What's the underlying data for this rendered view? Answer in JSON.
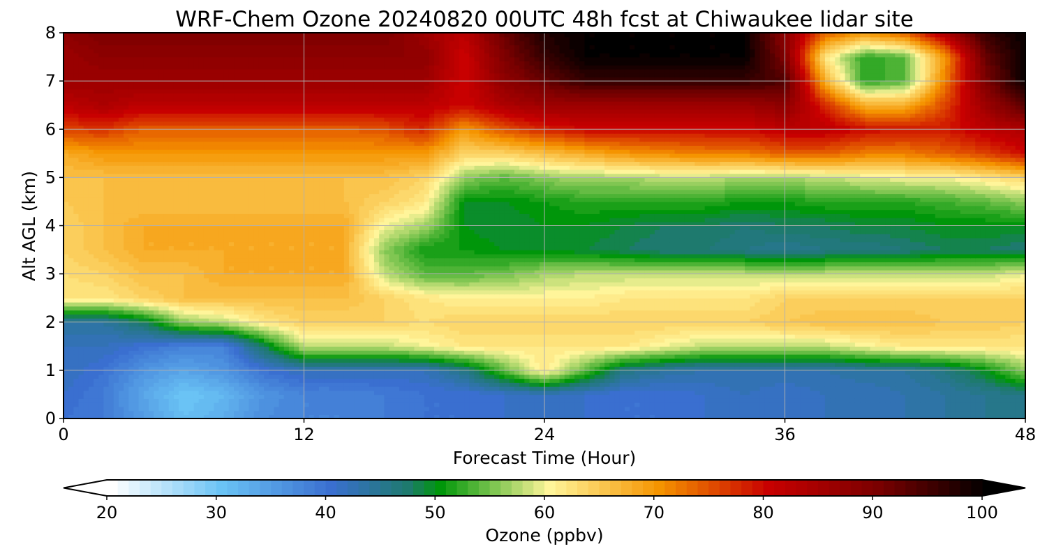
{
  "chart_data": {
    "type": "heatmap",
    "title": "WRF-Chem Ozone  20240820 00UTC 48h fcst at Chiwaukee lidar site",
    "xlabel": "Forecast Time (Hour)",
    "ylabel": "Alt AGL (km)",
    "xlim": [
      0,
      48
    ],
    "ylim": [
      0,
      8
    ],
    "xticks": [
      0,
      12,
      24,
      36,
      48
    ],
    "yticks": [
      0,
      1,
      2,
      3,
      4,
      5,
      6,
      7,
      8
    ],
    "grid": true,
    "x": [
      0,
      2,
      4,
      6,
      8,
      10,
      12,
      14,
      16,
      18,
      20,
      22,
      24,
      26,
      28,
      30,
      32,
      34,
      36,
      38,
      40,
      42,
      44,
      46,
      48
    ],
    "y": [
      0,
      0.5,
      1,
      1.5,
      2,
      2.5,
      3,
      3.5,
      4,
      4.5,
      5,
      5.5,
      6,
      6.5,
      7,
      7.5,
      8
    ],
    "z": [
      [
        40,
        39,
        35,
        31,
        33,
        37,
        38,
        38,
        39,
        40,
        40,
        41,
        41,
        41,
        40,
        40,
        41,
        42,
        41,
        42,
        42,
        43,
        44,
        45,
        45
      ],
      [
        41,
        39,
        34,
        30,
        32,
        36,
        38,
        38,
        39,
        40,
        40,
        41,
        42,
        41,
        40,
        40,
        41,
        42,
        41,
        42,
        42,
        43,
        44,
        45,
        46
      ],
      [
        42,
        40,
        36,
        34,
        36,
        40,
        42,
        42,
        42,
        42,
        46,
        54,
        62,
        54,
        46,
        44,
        43,
        43,
        43,
        43,
        44,
        44,
        46,
        50,
        56
      ],
      [
        42,
        42,
        40,
        38,
        38,
        48,
        58,
        58,
        58,
        60,
        62,
        62,
        62,
        62,
        62,
        60,
        58,
        58,
        58,
        58,
        60,
        62,
        62,
        62,
        62
      ],
      [
        44,
        44,
        48,
        56,
        58,
        62,
        64,
        64,
        64,
        63,
        64,
        64,
        64,
        64,
        64,
        64,
        64,
        64,
        65,
        66,
        66,
        66,
        65,
        65,
        64
      ],
      [
        62,
        62,
        64,
        66,
        66,
        66,
        66,
        66,
        64,
        62,
        61,
        61,
        61,
        61,
        62,
        62,
        62,
        62,
        64,
        64,
        64,
        64,
        64,
        64,
        64
      ],
      [
        63,
        64,
        66,
        66,
        68,
        68,
        68,
        68,
        58,
        54,
        54,
        55,
        57,
        58,
        58,
        58,
        58,
        58,
        58,
        58,
        58,
        58,
        58,
        58,
        60
      ],
      [
        64,
        66,
        68,
        68,
        68,
        68,
        68,
        68,
        56,
        51,
        51,
        50,
        50,
        49,
        48,
        47,
        47,
        46,
        45,
        46,
        46,
        47,
        48,
        48,
        47
      ],
      [
        64,
        66,
        68,
        68,
        68,
        68,
        68,
        68,
        60,
        57,
        50,
        49,
        50,
        50,
        49,
        48,
        48,
        47,
        48,
        48,
        49,
        49,
        50,
        50,
        50
      ],
      [
        65,
        66,
        66,
        66,
        66,
        66,
        66,
        66,
        64,
        62,
        50,
        50,
        51,
        52,
        52,
        52,
        52,
        51,
        51,
        52,
        52,
        52,
        53,
        54,
        56
      ],
      [
        66,
        66,
        66,
        66,
        66,
        66,
        66,
        66,
        66,
        64,
        56,
        54,
        56,
        57,
        57,
        58,
        58,
        57,
        57,
        58,
        59,
        60,
        60,
        62,
        64
      ],
      [
        68,
        70,
        70,
        70,
        70,
        70,
        70,
        70,
        70,
        70,
        64,
        64,
        66,
        68,
        70,
        71,
        72,
        72,
        74,
        74,
        72,
        72,
        74,
        76,
        80
      ],
      [
        76,
        77,
        74,
        74,
        74,
        74,
        74,
        74,
        75,
        78,
        70,
        75,
        78,
        80,
        80,
        80,
        80,
        80,
        82,
        82,
        80,
        79,
        79,
        82,
        84
      ],
      [
        82,
        84,
        82,
        82,
        82,
        82,
        82,
        82,
        82,
        82,
        80,
        84,
        86,
        86,
        86,
        86,
        86,
        86,
        88,
        78,
        68,
        68,
        76,
        86,
        94
      ],
      [
        86,
        86,
        86,
        86,
        86,
        86,
        86,
        86,
        86,
        86,
        80,
        88,
        92,
        96,
        96,
        96,
        96,
        96,
        94,
        68,
        52,
        54,
        72,
        90,
        100
      ],
      [
        86,
        88,
        88,
        88,
        88,
        88,
        88,
        88,
        88,
        88,
        80,
        90,
        96,
        100,
        100,
        100,
        100,
        100,
        90,
        62,
        52,
        54,
        70,
        92,
        100
      ],
      [
        88,
        90,
        90,
        90,
        90,
        90,
        90,
        90,
        90,
        86,
        82,
        92,
        98,
        100,
        100,
        100,
        100,
        100,
        88,
        74,
        70,
        74,
        84,
        96,
        100
      ]
    ],
    "colorbar": {
      "label": "Ozone  (ppbv)",
      "min": 20,
      "max": 100,
      "step": 1,
      "ticks": [
        20,
        30,
        40,
        50,
        60,
        70,
        80,
        90,
        100
      ],
      "extend": "both",
      "stops": [
        {
          "v": 20,
          "c": "#ffffff"
        },
        {
          "v": 30,
          "c": "#6ac3f5"
        },
        {
          "v": 40,
          "c": "#3a6fd0"
        },
        {
          "v": 47,
          "c": "#1e7a6e"
        },
        {
          "v": 50,
          "c": "#00960a"
        },
        {
          "v": 60,
          "c": "#fff59a"
        },
        {
          "v": 70,
          "c": "#f59400"
        },
        {
          "v": 80,
          "c": "#c80000"
        },
        {
          "v": 90,
          "c": "#7a0000"
        },
        {
          "v": 100,
          "c": "#000000"
        }
      ]
    }
  }
}
